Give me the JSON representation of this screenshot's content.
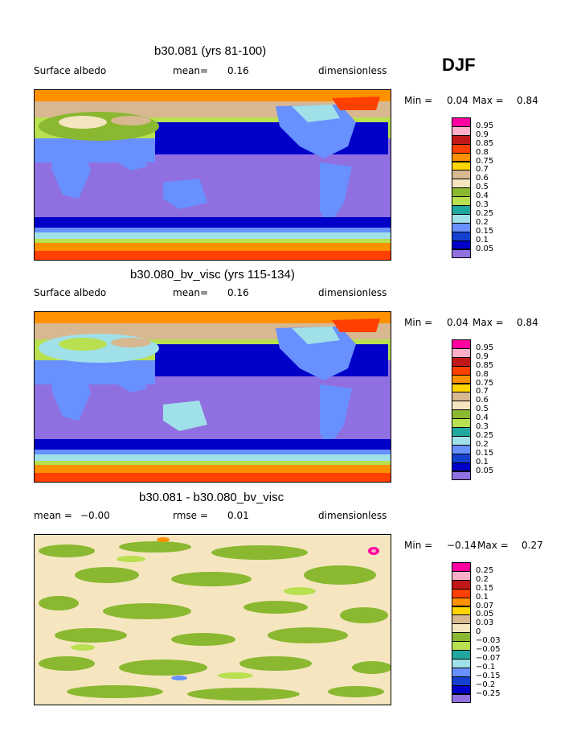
{
  "season": "DJF",
  "panels": [
    {
      "title": "b30.081 (yrs 81-100)",
      "variable": "Surface albedo",
      "mean_label": "mean=",
      "mean_value": "0.16",
      "units": "dimensionless",
      "min_label": "Min =",
      "min_value": "0.04",
      "max_label": "Max =",
      "max_value": "0.84",
      "legend": {
        "labels": [
          "0.95",
          "0.9",
          "0.85",
          "0.8",
          "0.75",
          "0.7",
          "0.6",
          "0.5",
          "0.4",
          "0.3",
          "0.25",
          "0.2",
          "0.15",
          "0.1",
          "0.05"
        ],
        "colors": [
          "#ff00a0",
          "#ffb0c8",
          "#c01818",
          "#ff4000",
          "#ff9000",
          "#ffd400",
          "#d8b890",
          "#f5e6c0",
          "#8ab830",
          "#b8e050",
          "#20a8a0",
          "#a0e0e8",
          "#6890ff",
          "#1440d0",
          "#0000c8",
          "#9070e0"
        ]
      }
    },
    {
      "title": "b30.080_bv_visc (yrs 115-134)",
      "variable": "Surface albedo",
      "mean_label": "mean=",
      "mean_value": "0.16",
      "units": "dimensionless",
      "min_label": "Min =",
      "min_value": "0.04",
      "max_label": "Max =",
      "max_value": "0.84",
      "legend": {
        "labels": [
          "0.95",
          "0.9",
          "0.85",
          "0.8",
          "0.75",
          "0.7",
          "0.6",
          "0.5",
          "0.4",
          "0.3",
          "0.25",
          "0.2",
          "0.15",
          "0.1",
          "0.05"
        ],
        "colors": [
          "#ff00a0",
          "#ffb0c8",
          "#c01818",
          "#ff4000",
          "#ff9000",
          "#ffd400",
          "#d8b890",
          "#f5e6c0",
          "#8ab830",
          "#b8e050",
          "#20a8a0",
          "#a0e0e8",
          "#6890ff",
          "#1440d0",
          "#0000c8",
          "#9070e0"
        ]
      }
    },
    {
      "title": "b30.081 - b30.080_bv_visc",
      "mean_label": "mean =",
      "mean_value": "−0.00",
      "rmse_label": "rmse =",
      "rmse_value": "0.01",
      "units": "dimensionless",
      "min_label": "Min =",
      "min_value": "−0.14",
      "max_label": "Max =",
      "max_value": "0.27",
      "legend": {
        "labels": [
          "0.25",
          "0.2",
          "0.15",
          "0.1",
          "0.07",
          "0.05",
          "0.03",
          "0",
          "−0.03",
          "−0.05",
          "−0.07",
          "−0.1",
          "−0.15",
          "−0.2",
          "−0.25"
        ],
        "colors": [
          "#ff00a0",
          "#ffb0c8",
          "#c01818",
          "#ff4000",
          "#ff9000",
          "#ffd400",
          "#d8b890",
          "#f5e6c0",
          "#8ab830",
          "#b8e050",
          "#20a8a0",
          "#a0e0e8",
          "#6890ff",
          "#1440d0",
          "#0000c8",
          "#9070e0"
        ]
      }
    }
  ]
}
